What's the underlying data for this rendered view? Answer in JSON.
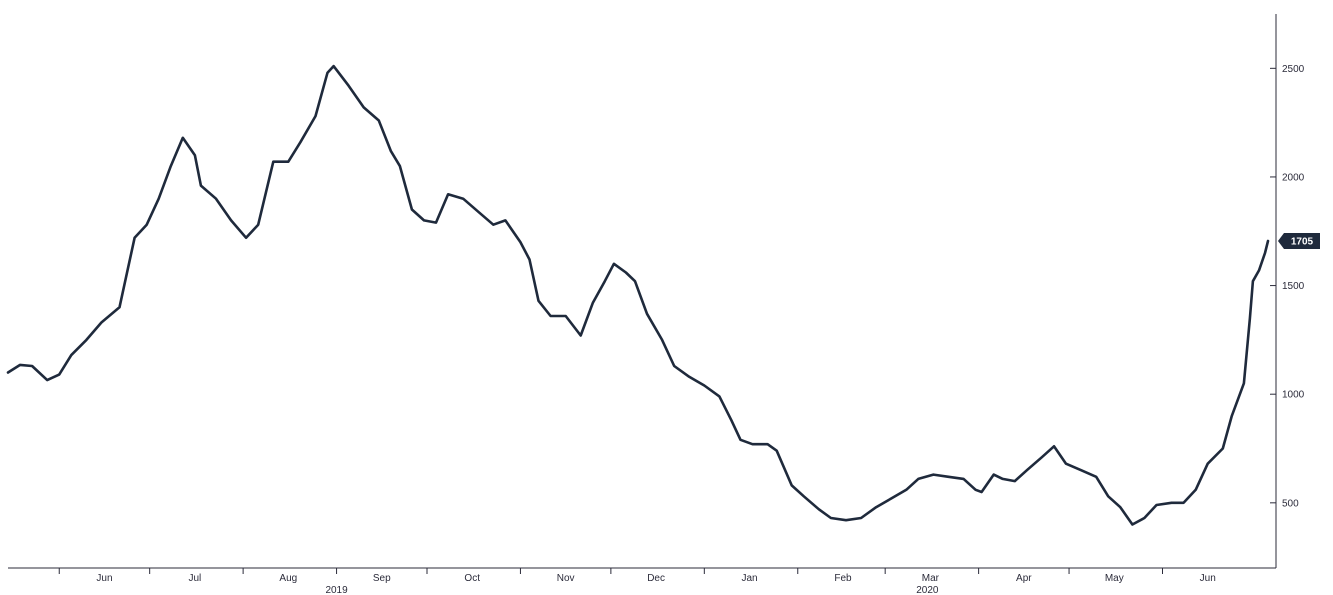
{
  "chart_data": {
    "type": "line",
    "title": "",
    "xlabel": "",
    "ylabel": "",
    "ylim": [
      200,
      2750
    ],
    "xlim": [
      "2019-05-15",
      "2020-07-06"
    ],
    "y_ticks": [
      500,
      1000,
      1500,
      2000,
      2500
    ],
    "x_month_ticks": [
      {
        "date": "2019-06-01",
        "label": "Jun"
      },
      {
        "date": "2019-07-01",
        "label": "Jul"
      },
      {
        "date": "2019-08-01",
        "label": "Aug"
      },
      {
        "date": "2019-09-01",
        "label": "Sep"
      },
      {
        "date": "2019-10-01",
        "label": "Oct"
      },
      {
        "date": "2019-11-01",
        "label": "Nov"
      },
      {
        "date": "2019-12-01",
        "label": "Dec"
      },
      {
        "date": "2020-01-01",
        "label": "Jan"
      },
      {
        "date": "2020-02-01",
        "label": "Feb"
      },
      {
        "date": "2020-03-01",
        "label": "Mar"
      },
      {
        "date": "2020-04-01",
        "label": "Apr"
      },
      {
        "date": "2020-05-01",
        "label": "May"
      },
      {
        "date": "2020-06-01",
        "label": "Jun"
      }
    ],
    "year_labels": [
      {
        "date": "2019-09-01",
        "label": "2019"
      },
      {
        "date": "2020-03-15",
        "label": "2020"
      }
    ],
    "last_value_label": "1705",
    "series": [
      {
        "color": "#1f2a3c",
        "points": [
          [
            "2019-05-15",
            1100
          ],
          [
            "2019-05-19",
            1135
          ],
          [
            "2019-05-23",
            1130
          ],
          [
            "2019-05-28",
            1065
          ],
          [
            "2019-06-01",
            1090
          ],
          [
            "2019-06-05",
            1180
          ],
          [
            "2019-06-10",
            1250
          ],
          [
            "2019-06-15",
            1330
          ],
          [
            "2019-06-21",
            1400
          ],
          [
            "2019-06-26",
            1720
          ],
          [
            "2019-06-30",
            1780
          ],
          [
            "2019-07-04",
            1900
          ],
          [
            "2019-07-08",
            2050
          ],
          [
            "2019-07-12",
            2180
          ],
          [
            "2019-07-16",
            2100
          ],
          [
            "2019-07-18",
            1960
          ],
          [
            "2019-07-23",
            1900
          ],
          [
            "2019-07-28",
            1800
          ],
          [
            "2019-08-02",
            1720
          ],
          [
            "2019-08-06",
            1780
          ],
          [
            "2019-08-11",
            2070
          ],
          [
            "2019-08-16",
            2070
          ],
          [
            "2019-08-20",
            2160
          ],
          [
            "2019-08-25",
            2280
          ],
          [
            "2019-08-29",
            2480
          ],
          [
            "2019-08-31",
            2510
          ],
          [
            "2019-09-05",
            2420
          ],
          [
            "2019-09-10",
            2320
          ],
          [
            "2019-09-15",
            2260
          ],
          [
            "2019-09-19",
            2120
          ],
          [
            "2019-09-22",
            2050
          ],
          [
            "2019-09-26",
            1850
          ],
          [
            "2019-09-30",
            1800
          ],
          [
            "2019-10-04",
            1790
          ],
          [
            "2019-10-08",
            1920
          ],
          [
            "2019-10-13",
            1900
          ],
          [
            "2019-10-18",
            1840
          ],
          [
            "2019-10-23",
            1780
          ],
          [
            "2019-10-27",
            1800
          ],
          [
            "2019-11-01",
            1700
          ],
          [
            "2019-11-04",
            1620
          ],
          [
            "2019-11-07",
            1430
          ],
          [
            "2019-11-11",
            1360
          ],
          [
            "2019-11-16",
            1360
          ],
          [
            "2019-11-21",
            1270
          ],
          [
            "2019-11-25",
            1420
          ],
          [
            "2019-11-29",
            1520
          ],
          [
            "2019-12-02",
            1600
          ],
          [
            "2019-12-06",
            1560
          ],
          [
            "2019-12-09",
            1520
          ],
          [
            "2019-12-13",
            1370
          ],
          [
            "2019-12-18",
            1250
          ],
          [
            "2019-12-22",
            1130
          ],
          [
            "2019-12-27",
            1080
          ],
          [
            "2020-01-01",
            1040
          ],
          [
            "2020-01-06",
            990
          ],
          [
            "2020-01-10",
            880
          ],
          [
            "2020-01-13",
            790
          ],
          [
            "2020-01-17",
            770
          ],
          [
            "2020-01-22",
            770
          ],
          [
            "2020-01-25",
            740
          ],
          [
            "2020-01-30",
            580
          ],
          [
            "2020-02-03",
            530
          ],
          [
            "2020-02-08",
            470
          ],
          [
            "2020-02-12",
            430
          ],
          [
            "2020-02-17",
            420
          ],
          [
            "2020-02-22",
            430
          ],
          [
            "2020-02-27",
            480
          ],
          [
            "2020-03-03",
            520
          ],
          [
            "2020-03-08",
            560
          ],
          [
            "2020-03-12",
            610
          ],
          [
            "2020-03-17",
            630
          ],
          [
            "2020-03-22",
            620
          ],
          [
            "2020-03-27",
            610
          ],
          [
            "2020-03-31",
            560
          ],
          [
            "2020-04-02",
            550
          ],
          [
            "2020-04-06",
            630
          ],
          [
            "2020-04-09",
            610
          ],
          [
            "2020-04-13",
            600
          ],
          [
            "2020-04-17",
            650
          ],
          [
            "2020-04-22",
            710
          ],
          [
            "2020-04-26",
            760
          ],
          [
            "2020-04-30",
            680
          ],
          [
            "2020-05-05",
            650
          ],
          [
            "2020-05-10",
            620
          ],
          [
            "2020-05-14",
            530
          ],
          [
            "2020-05-18",
            480
          ],
          [
            "2020-05-22",
            400
          ],
          [
            "2020-05-26",
            430
          ],
          [
            "2020-05-30",
            490
          ],
          [
            "2020-06-04",
            500
          ],
          [
            "2020-06-08",
            500
          ],
          [
            "2020-06-12",
            560
          ],
          [
            "2020-06-16",
            680
          ],
          [
            "2020-06-21",
            750
          ],
          [
            "2020-06-24",
            900
          ],
          [
            "2020-06-28",
            1050
          ],
          [
            "2020-06-30",
            1350
          ],
          [
            "2020-07-01",
            1520
          ],
          [
            "2020-07-03",
            1570
          ],
          [
            "2020-07-05",
            1650
          ],
          [
            "2020-07-06",
            1705
          ]
        ]
      }
    ],
    "grid": false,
    "legend": "none",
    "y_axis_position": "right",
    "line_color": "#1f2a3c",
    "badge_color": "#1f2a3c"
  }
}
